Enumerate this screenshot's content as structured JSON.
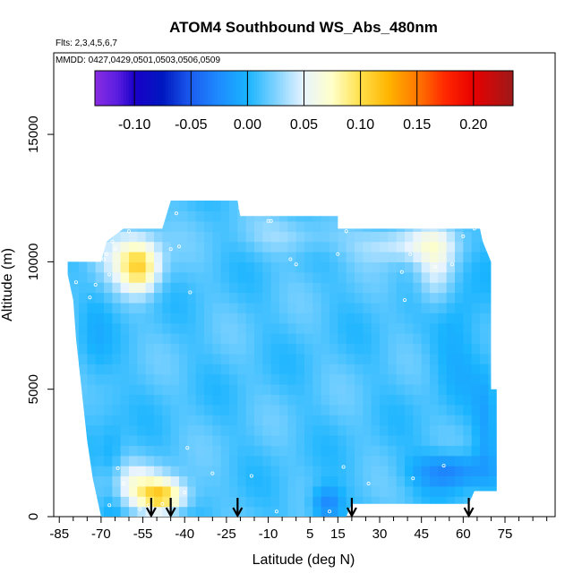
{
  "chart_data": {
    "type": "heatmap",
    "title": "ATOM4 Southbound WS_Abs_480nm",
    "flights_note": "Flts: 2,3,4,5,6,7",
    "dates_note": "MMDD: 0427,0429,0501,0503,0506,0509",
    "xlabel": "Latitude (deg N)",
    "ylabel": "Altitude (m)",
    "xlim": [
      -87,
      93
    ],
    "ylim": [
      0,
      18200
    ],
    "x_ticks": [
      -85,
      -70,
      -55,
      -40,
      -25,
      -10,
      5,
      15,
      30,
      45,
      60,
      75
    ],
    "x_minor_ticks": [
      -80,
      -75,
      -65,
      -60,
      -50,
      -45,
      -35,
      -30,
      -20,
      -15,
      -5,
      0,
      10,
      20,
      25,
      35,
      40,
      50,
      55,
      65,
      70,
      80,
      85,
      90
    ],
    "y_ticks": [
      0,
      5000,
      10000,
      15000
    ],
    "colorbar": {
      "min": -0.135,
      "max": 0.235,
      "ticks": [
        -0.1,
        -0.05,
        0.0,
        0.05,
        0.1,
        0.15,
        0.2
      ],
      "tick_labels": [
        "-0.10",
        "-0.05",
        "0.00",
        "0.05",
        "0.10",
        "0.15",
        "0.20"
      ],
      "boundaries": [
        -0.1,
        -0.05,
        0.0,
        0.05,
        0.1,
        0.15,
        0.2
      ],
      "stops": [
        {
          "v": -0.135,
          "c": "#8a2be2"
        },
        {
          "v": -0.115,
          "c": "#5a1ee0"
        },
        {
          "v": -0.1,
          "c": "#1a00c8"
        },
        {
          "v": -0.075,
          "c": "#0018c0"
        },
        {
          "v": -0.05,
          "c": "#1c5cf0"
        },
        {
          "v": -0.025,
          "c": "#1e8cff"
        },
        {
          "v": 0.0,
          "c": "#19b4ff"
        },
        {
          "v": 0.025,
          "c": "#7fd2ff"
        },
        {
          "v": 0.05,
          "c": "#e8f4ff"
        },
        {
          "v": 0.075,
          "c": "#ffffc8"
        },
        {
          "v": 0.1,
          "c": "#ffe04a"
        },
        {
          "v": 0.125,
          "c": "#ffb400"
        },
        {
          "v": 0.15,
          "c": "#ff7800"
        },
        {
          "v": 0.175,
          "c": "#ff2800"
        },
        {
          "v": 0.2,
          "c": "#e80000"
        },
        {
          "v": 0.235,
          "c": "#9e1a1a"
        }
      ]
    },
    "domain_polygon": [
      [
        -82,
        10000
      ],
      [
        -70,
        10000
      ],
      [
        -68,
        10800
      ],
      [
        -62,
        11300
      ],
      [
        -48,
        11300
      ],
      [
        -45,
        12400
      ],
      [
        -21,
        12400
      ],
      [
        -20,
        11800
      ],
      [
        15,
        11800
      ],
      [
        15,
        11300
      ],
      [
        66,
        11300
      ],
      [
        67,
        10800
      ],
      [
        70,
        10000
      ],
      [
        70,
        5000
      ],
      [
        72,
        5000
      ],
      [
        72,
        1000
      ],
      [
        64,
        1000
      ],
      [
        62,
        500
      ],
      [
        20,
        500
      ],
      [
        18,
        0
      ],
      [
        -70,
        0
      ],
      [
        -73,
        1500
      ],
      [
        -75,
        3000
      ],
      [
        -77,
        5000
      ],
      [
        -79,
        7000
      ],
      [
        -80,
        8500
      ],
      [
        -82,
        9500
      ]
    ],
    "background_value": 0.012,
    "anomalies": [
      {
        "x": -56,
        "y": 9800,
        "sx": 5,
        "sy": 700,
        "v": 0.075
      },
      {
        "x": -62,
        "y": 10400,
        "sx": 9,
        "sy": 900,
        "v": 0.03
      },
      {
        "x": -48,
        "y": 800,
        "sx": 6,
        "sy": 450,
        "v": 0.085
      },
      {
        "x": -57,
        "y": 1300,
        "sx": 9,
        "sy": 600,
        "v": 0.04
      },
      {
        "x": 50,
        "y": 9600,
        "sx": 5,
        "sy": 1200,
        "v": 0.04
      },
      {
        "x": 40,
        "y": 10700,
        "sx": 12,
        "sy": 500,
        "v": 0.035
      },
      {
        "x": 0,
        "y": 11000,
        "sx": 12,
        "sy": 500,
        "v": 0.02
      },
      {
        "x": 55,
        "y": 1800,
        "sx": 9,
        "sy": 500,
        "v": -0.045
      },
      {
        "x": 68,
        "y": 3500,
        "sx": 3,
        "sy": 1400,
        "v": -0.02
      },
      {
        "x": 58,
        "y": 7500,
        "sx": 8,
        "sy": 1800,
        "v": -0.018
      },
      {
        "x": 11,
        "y": 500,
        "sx": 4,
        "sy": 500,
        "v": -0.045
      },
      {
        "x": -66,
        "y": 1500,
        "sx": 3,
        "sy": 1500,
        "v": -0.02
      },
      {
        "x": -72,
        "y": 6500,
        "sx": 4,
        "sy": 2000,
        "v": -0.01
      }
    ],
    "arrows_at_latitude": [
      -52,
      -45,
      -21,
      20,
      62
    ],
    "sample_points": [
      [
        -79,
        9200
      ],
      [
        -74,
        8600
      ],
      [
        -72,
        9100
      ],
      [
        -67,
        9500
      ],
      [
        -69,
        10100
      ],
      [
        -68,
        10300
      ],
      [
        -65,
        10500
      ],
      [
        -66,
        10800
      ],
      [
        -60,
        11200
      ],
      [
        -45,
        10500
      ],
      [
        -42,
        10600
      ],
      [
        -38,
        8800
      ],
      [
        -43,
        11900
      ],
      [
        -20,
        12100
      ],
      [
        -10,
        11600
      ],
      [
        -9,
        11600
      ],
      [
        -2,
        10100
      ],
      [
        0,
        9900
      ],
      [
        15,
        10300
      ],
      [
        18,
        11200
      ],
      [
        38,
        9600
      ],
      [
        41,
        10300
      ],
      [
        50,
        9800
      ],
      [
        56,
        9900
      ],
      [
        60,
        11000
      ],
      [
        64,
        11300
      ],
      [
        73,
        5200
      ],
      [
        39,
        8500
      ],
      [
        -39,
        2700
      ],
      [
        -64,
        1900
      ],
      [
        -62,
        1300
      ],
      [
        -67,
        450
      ],
      [
        -56,
        300
      ],
      [
        -30,
        1700
      ],
      [
        -16,
        1600
      ],
      [
        -40,
        950
      ],
      [
        -53,
        450
      ],
      [
        17,
        1950
      ],
      [
        26,
        1300
      ],
      [
        42,
        1500
      ],
      [
        53,
        2000
      ],
      [
        12,
        200
      ],
      [
        -7,
        200
      ],
      [
        -48,
        500
      ]
    ]
  }
}
